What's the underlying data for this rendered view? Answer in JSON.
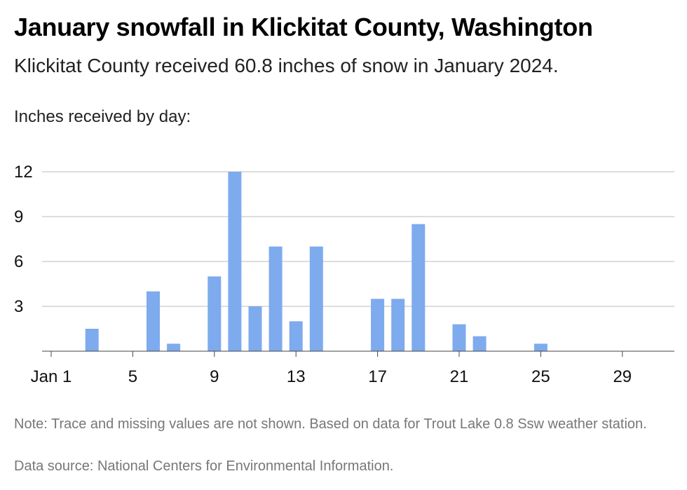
{
  "title": "January snowfall in Klickitat County, Washington",
  "subtitle": "Klickitat County received 60.8 inches of snow in January 2024.",
  "ylabel": "Inches received by day:",
  "note": "Note: Trace and missing values are not shown. Based on data for Trout Lake 0.8 Ssw weather station.",
  "source": "Data source: National Centers for Environmental Information.",
  "chart_data": {
    "type": "bar",
    "bar_color": "#7eaaee",
    "grid_color": "#bbbbbb",
    "x": [
      1,
      2,
      3,
      4,
      5,
      6,
      7,
      8,
      9,
      10,
      11,
      12,
      13,
      14,
      15,
      16,
      17,
      18,
      19,
      20,
      21,
      22,
      23,
      24,
      25,
      26,
      27,
      28,
      29,
      30,
      31
    ],
    "values": [
      0,
      0,
      1.5,
      0,
      0,
      4,
      0.5,
      0,
      5,
      12,
      3,
      7,
      2,
      7,
      0,
      0,
      3.5,
      3.5,
      8.5,
      0,
      1.8,
      1,
      0,
      0,
      0.5,
      0,
      0,
      0,
      0,
      0,
      0
    ],
    "x_ticks": [
      1,
      5,
      9,
      13,
      17,
      21,
      25,
      29
    ],
    "x_tick_labels": [
      "Jan 1",
      "5",
      "9",
      "13",
      "17",
      "21",
      "25",
      "29"
    ],
    "y_ticks": [
      3,
      6,
      9,
      12
    ],
    "y_tick_labels": [
      "3",
      "6",
      "9",
      "12"
    ],
    "ylim": [
      0,
      12
    ],
    "grid": true
  }
}
